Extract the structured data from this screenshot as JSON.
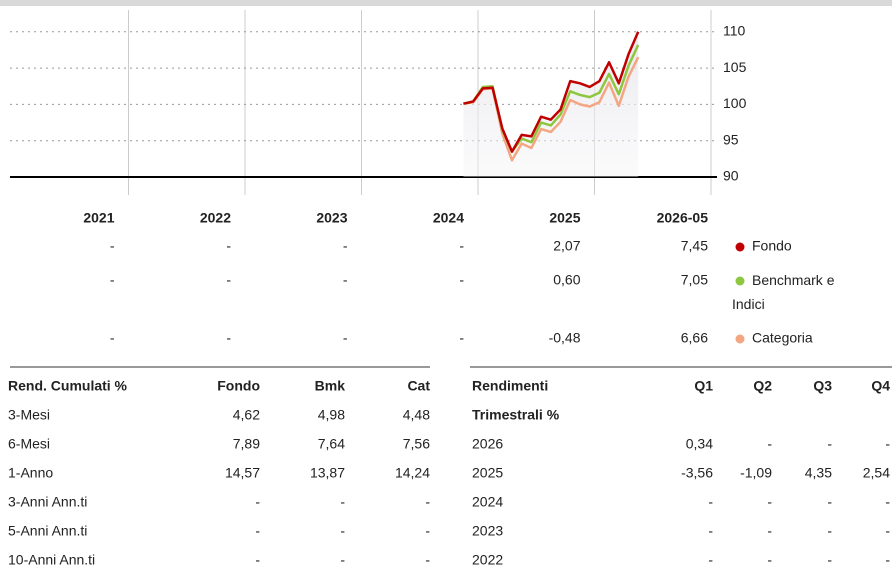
{
  "chart_data": {
    "type": "line",
    "x": [
      "2024-11",
      "2024-12",
      "2025-01",
      "2025-02",
      "2025-03",
      "2025-04",
      "2025-05",
      "2025-06",
      "2025-07",
      "2025-08",
      "2025-09",
      "2025-10",
      "2025-11",
      "2025-12",
      "2026-01",
      "2026-02",
      "2026-03",
      "2026-04",
      "2026-05"
    ],
    "series": [
      {
        "name": "Fondo",
        "color": "#c00000",
        "values": [
          100.1,
          100.4,
          102.2,
          102.3,
          96.7,
          93.5,
          95.8,
          95.6,
          98.3,
          97.9,
          99.3,
          103.2,
          102.9,
          102.4,
          103.2,
          105.8,
          102.9,
          106.9,
          110.0
        ]
      },
      {
        "name": "Benchmark e Indici",
        "color": "#8dc63f",
        "values": [
          100.1,
          100.4,
          102.4,
          102.5,
          96.5,
          93.5,
          95.3,
          94.8,
          97.5,
          97.1,
          98.6,
          101.8,
          101.3,
          101.0,
          101.6,
          104.2,
          101.4,
          105.3,
          108.2
        ]
      },
      {
        "name": "Categoria",
        "color": "#f4a582",
        "values": [
          100.1,
          100.3,
          102.1,
          102.2,
          96.0,
          92.3,
          94.6,
          94.0,
          96.6,
          96.2,
          97.6,
          100.6,
          100.0,
          99.7,
          100.3,
          103.0,
          99.8,
          103.8,
          106.5
        ]
      }
    ],
    "ylim": [
      90,
      113
    ],
    "yticks": [
      90,
      95,
      100,
      105,
      110
    ],
    "grid": true
  },
  "annual_returns": {
    "periods": [
      "2021",
      "2022",
      "2023",
      "2024",
      "2025",
      "2026-05"
    ],
    "rows": [
      [
        "-",
        "-",
        "-",
        "-",
        "2,07",
        "7,45"
      ],
      [
        "-",
        "-",
        "-",
        "-",
        "0,60",
        "7,05"
      ],
      [
        "-",
        "-",
        "-",
        "-",
        "-0,48",
        "6,66"
      ]
    ]
  },
  "cumulative": {
    "header": [
      "Rend. Cumulati %",
      "Fondo",
      "Bmk",
      "Cat"
    ],
    "rows": [
      [
        "3-Mesi",
        "4,62",
        "4,98",
        "4,48"
      ],
      [
        "6-Mesi",
        "7,89",
        "7,64",
        "7,56"
      ],
      [
        "1-Anno",
        "14,57",
        "13,87",
        "14,24"
      ],
      [
        "3-Anni Ann.ti",
        "-",
        "-",
        "-"
      ],
      [
        "5-Anni Ann.ti",
        "-",
        "-",
        "-"
      ],
      [
        "10-Anni Ann.ti",
        "-",
        "-",
        "-"
      ]
    ]
  },
  "quarterly": {
    "header": [
      "Rendimenti",
      "Trimestrali %",
      "Q1",
      "Q2",
      "Q3",
      "Q4"
    ],
    "rows": [
      [
        "2026",
        "0,34",
        "-",
        "-",
        "-"
      ],
      [
        "2025",
        "-3,56",
        "-1,09",
        "4,35",
        "2,54"
      ],
      [
        "2024",
        "-",
        "-",
        "-",
        "-"
      ],
      [
        "2023",
        "-",
        "-",
        "-",
        "-"
      ],
      [
        "2022",
        "-",
        "-",
        "-",
        "-"
      ]
    ]
  }
}
